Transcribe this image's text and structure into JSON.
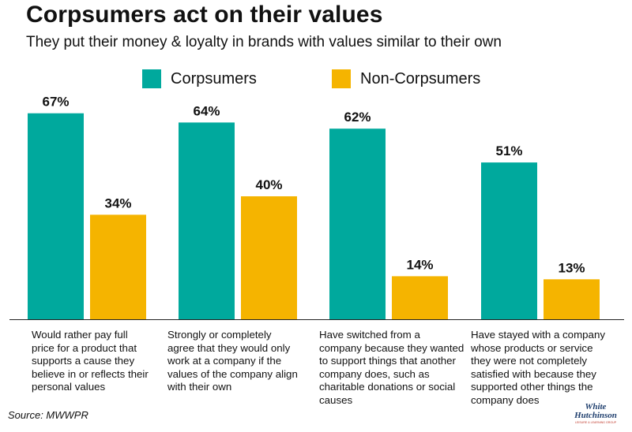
{
  "chart_data": {
    "type": "bar",
    "title": "Corpsumers act on their values",
    "subtitle": "They put their money & loyalty in brands with values similar to their own",
    "categories": [
      "Would rather pay full\nprice for a product that\nsupports a cause they\nbelieve in or reflects their\npersonal values",
      "Strongly or completely\nagree that they would only\nwork at a company if the\nvalues of the company align\nwith their own",
      "Have switched from a\ncompany because they wanted\nto support things that another\ncompany does, such as\ncharitable donations or social\ncauses",
      "Have stayed with a company\nwhose products or service\nthey were not completely\nsatisfied with because they\nsupported other things the\ncompany does"
    ],
    "series": [
      {
        "name": "Corpsumers",
        "color": "#00a99d",
        "values": [
          67,
          64,
          62,
          51
        ],
        "labels": [
          "67%",
          "64%",
          "62%",
          "51%"
        ]
      },
      {
        "name": "Non-Corpsumers",
        "color": "#f5b400",
        "values": [
          34,
          40,
          14,
          13
        ],
        "labels": [
          "34%",
          "40%",
          "14%",
          "13%"
        ]
      }
    ],
    "ylim": [
      0,
      100
    ],
    "grid": false,
    "legend_position": "top",
    "source": "Source: MWWPR"
  },
  "logo": {
    "line1": "White",
    "line2": "Hutchinson",
    "tagline": "LEISURE & LEARNING GROUP"
  }
}
